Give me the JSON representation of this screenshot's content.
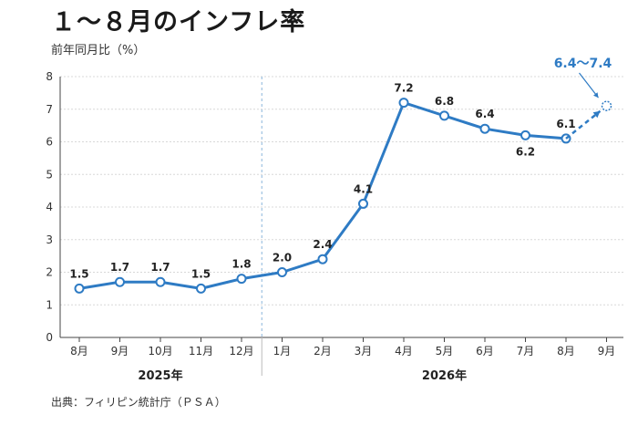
{
  "title": "１～８月のインフレ率",
  "unit_label": "前年同月比（%）",
  "source": "出典：フィリピン統計庁（ＰＳＡ）",
  "colors": {
    "line": "#2e7bc4",
    "grid": "#d8d8d8",
    "axis": "#444444"
  },
  "chart_data": {
    "type": "line",
    "categories": [
      "8月",
      "9月",
      "10月",
      "11月",
      "12月",
      "1月",
      "2月",
      "3月",
      "4月",
      "5月",
      "6月",
      "7月",
      "8月",
      "9月"
    ],
    "year_groups": [
      {
        "label": "2025年",
        "from": 0,
        "to": 4
      },
      {
        "label": "2026年",
        "from": 5,
        "to": 13
      }
    ],
    "series": [
      {
        "values": [
          1.5,
          1.7,
          1.7,
          1.5,
          1.8,
          2.0,
          2.4,
          4.1,
          7.2,
          6.8,
          6.4,
          6.2,
          6.1,
          null
        ],
        "labels": [
          "1.5",
          "1.7",
          "1.7",
          "1.5",
          "1.8",
          "2.0",
          "2.4",
          "4.1",
          "7.2",
          "6.8",
          "6.4",
          "6.2",
          "6.1",
          ""
        ]
      }
    ],
    "forecast": {
      "from_index": 12,
      "to_index": 13,
      "value": 7.1,
      "label": "6.4～7.4"
    },
    "ylim": [
      0,
      8
    ],
    "yticks": [
      0,
      1,
      2,
      3,
      4,
      5,
      6,
      7,
      8
    ],
    "grid": true,
    "year_divider_after_index": 4
  }
}
